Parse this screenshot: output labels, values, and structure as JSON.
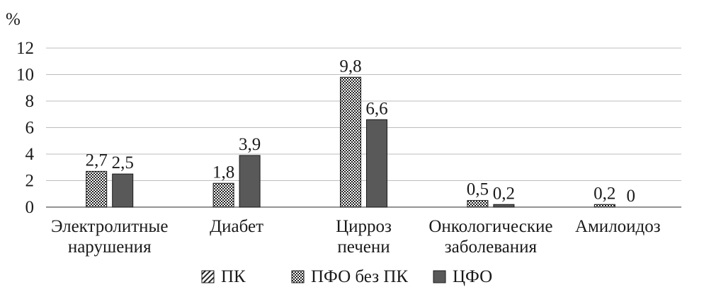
{
  "chart_data": {
    "type": "bar",
    "ylabel": "%",
    "ylim": [
      0,
      12
    ],
    "yticks": [
      0,
      2,
      4,
      6,
      8,
      10,
      12
    ],
    "grid": true,
    "legend_position": "bottom",
    "categories": [
      [
        "Электролитные",
        "нарушения"
      ],
      [
        "Диабет"
      ],
      [
        "Цирроз",
        "печени"
      ],
      [
        "Онкологические",
        "заболевания"
      ],
      [
        "Амилоидоз"
      ]
    ],
    "series": [
      {
        "name": "ПК",
        "pattern": "hatch",
        "values": [
          null,
          null,
          null,
          null,
          null
        ],
        "labels": [
          "",
          "",
          "",
          "",
          ""
        ]
      },
      {
        "name": "ПФО без ПК",
        "pattern": "checker",
        "values": [
          2.7,
          1.8,
          9.8,
          0.5,
          0.2
        ],
        "labels": [
          "2,7",
          "1,8",
          "9,8",
          "0,5",
          "0,2"
        ]
      },
      {
        "name": "ЦФО",
        "pattern": "solid",
        "color": "#595959",
        "values": [
          2.5,
          3.9,
          6.6,
          0.2,
          0
        ],
        "labels": [
          "2,5",
          "3,9",
          "6,6",
          "0,2",
          "0"
        ]
      }
    ]
  }
}
